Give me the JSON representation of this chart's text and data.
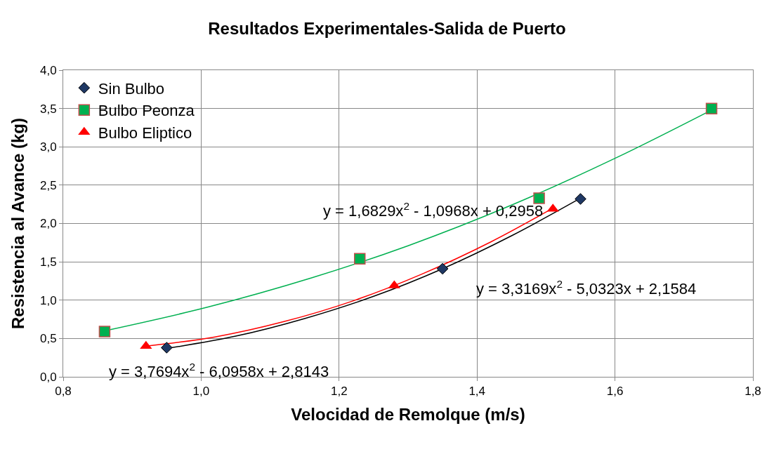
{
  "chart_data": {
    "type": "scatter",
    "title": "Resultados Experimentales-Salida de Puerto",
    "xlabel": "Velocidad de Remolque (m/s)",
    "ylabel": "Resistencia al Avance (kg)",
    "xlim": [
      0.8,
      1.8
    ],
    "ylim": [
      0,
      4
    ],
    "xticks": [
      {
        "value": 0.8,
        "label": "0,8"
      },
      {
        "value": 1.0,
        "label": "1,0"
      },
      {
        "value": 1.2,
        "label": "1,2"
      },
      {
        "value": 1.4,
        "label": "1,4"
      },
      {
        "value": 1.6,
        "label": "1,6"
      },
      {
        "value": 1.8,
        "label": "1,8"
      }
    ],
    "yticks": [
      {
        "value": 0,
        "label": "0,0"
      },
      {
        "value": 0.5,
        "label": "0,5"
      },
      {
        "value": 1.0,
        "label": "1,0"
      },
      {
        "value": 1.5,
        "label": "1,5"
      },
      {
        "value": 2.0,
        "label": "2,0"
      },
      {
        "value": 2.5,
        "label": "2,5"
      },
      {
        "value": 3.0,
        "label": "3,0"
      },
      {
        "value": 3.5,
        "label": "3,5"
      },
      {
        "value": 4.0,
        "label": "4,0"
      }
    ],
    "grid": true,
    "legend": "top left",
    "series": [
      {
        "type": "line",
        "color": "#000000",
        "marker": "none",
        "x": [
          0.95,
          1.05,
          1.15,
          1.25,
          1.35,
          1.45,
          1.55
        ],
        "values": [
          0.37,
          0.53,
          0.76,
          1.05,
          1.41,
          1.84,
          2.33
        ]
      },
      {
        "type": "line",
        "color": "#ff0000",
        "marker": "none",
        "x": [
          0.92,
          1.02,
          1.12,
          1.22,
          1.32,
          1.42,
          1.51
        ],
        "values": [
          0.4,
          0.52,
          0.72,
          0.99,
          1.34,
          1.76,
          2.2
        ]
      },
      {
        "type": "line",
        "color": "#00b050",
        "marker": "none",
        "x": [
          0.86,
          1.01,
          1.16,
          1.3,
          1.45,
          1.6,
          1.74
        ],
        "values": [
          0.6,
          0.91,
          1.29,
          1.71,
          2.24,
          2.85,
          3.48
        ]
      },
      {
        "name": "Sin Bulbo",
        "color": "#1f3864",
        "marker": "diamond",
        "x": [
          0.95,
          1.35,
          1.55
        ],
        "values": [
          0.38,
          1.41,
          2.32
        ]
      },
      {
        "name": "Bulbo Peonza",
        "color": "#00b050",
        "marker": "square",
        "x": [
          0.86,
          1.23,
          1.49,
          1.74
        ],
        "values": [
          0.59,
          1.54,
          2.33,
          3.5
        ]
      },
      {
        "name": "Bulbo Eliptico",
        "color": "#ff0000",
        "marker": "triangle",
        "x": [
          0.92,
          1.28,
          1.51
        ],
        "values": [
          0.4,
          1.19,
          2.19
        ]
      }
    ],
    "annotations": [
      "y = 1,6829x$^{2}$ - 1,0968x + 0,2958",
      "y = 3,3169x$^{2}$ - 5,0323x + 2,1584",
      "y = 3,7694x$^{2}$ - 6,0958x + 2,8143"
    ]
  }
}
